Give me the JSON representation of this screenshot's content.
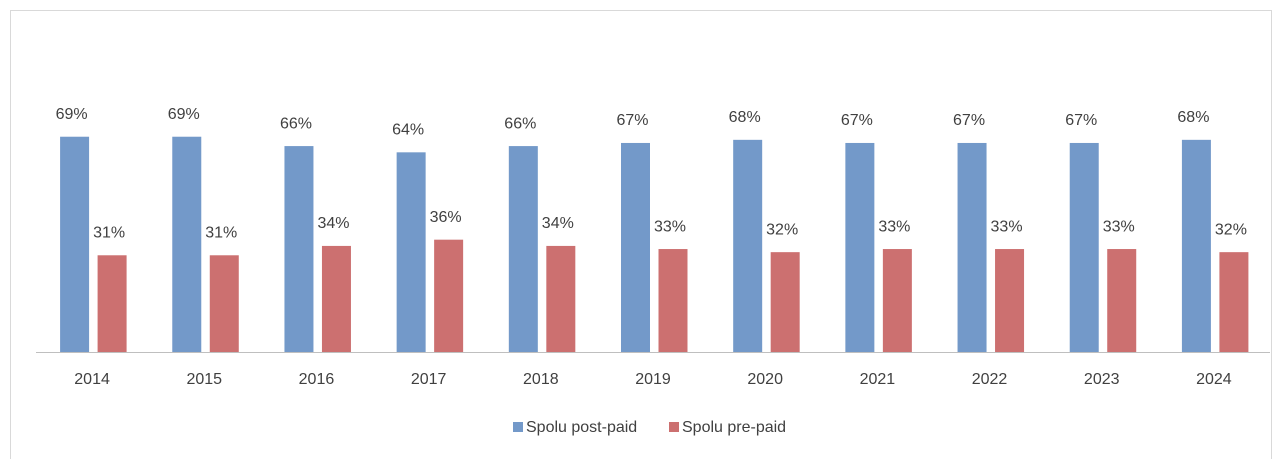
{
  "chart_data": {
    "type": "bar",
    "categories": [
      "2014",
      "2015",
      "2016",
      "2017",
      "2018",
      "2019",
      "2020",
      "2021",
      "2022",
      "2023",
      "2024"
    ],
    "series": [
      {
        "name": "Spolu post-paid",
        "color": "#7399c9",
        "values": [
          69,
          69,
          66,
          64,
          66,
          67,
          68,
          67,
          67,
          67,
          68
        ],
        "value_labels": [
          "69%",
          "69%",
          "66%",
          "64%",
          "66%",
          "67%",
          "68%",
          "67%",
          "67%",
          "67%",
          "68%"
        ]
      },
      {
        "name": "Spolu pre-paid",
        "color": "#cc7070",
        "values": [
          31,
          31,
          34,
          36,
          34,
          33,
          32,
          33,
          33,
          33,
          32
        ],
        "value_labels": [
          "31%",
          "31%",
          "34%",
          "36%",
          "34%",
          "33%",
          "32%",
          "33%",
          "33%",
          "33%",
          "32%"
        ]
      }
    ],
    "ylim": [
      0,
      100
    ],
    "legend": "bottom"
  }
}
